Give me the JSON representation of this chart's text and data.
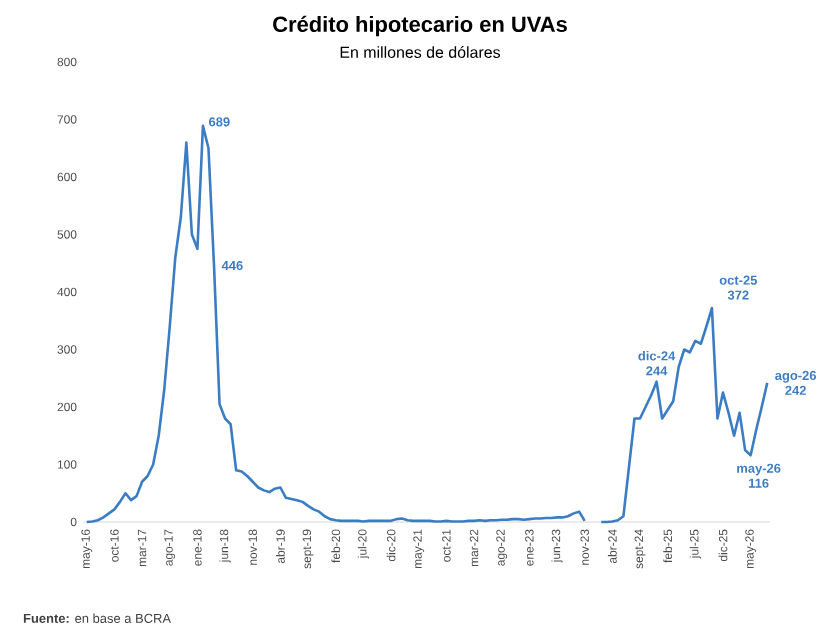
{
  "chart_data": {
    "type": "line",
    "title": "Crédito hipotecario en UVAs",
    "subtitle": "En millones de dólares",
    "categories": [
      "may-16",
      null,
      null,
      null,
      null,
      "oct-16",
      null,
      null,
      null,
      null,
      "mar-17",
      null,
      null,
      null,
      null,
      "ago-17",
      null,
      null,
      null,
      null,
      "ene-18",
      null,
      null,
      null,
      null,
      "jun-18",
      null,
      null,
      null,
      null,
      "nov-18",
      null,
      null,
      null,
      null,
      "abr-19",
      null,
      null,
      null,
      null,
      "sept-19",
      null,
      null,
      null,
      null,
      "feb-20",
      null,
      null,
      null,
      null,
      "jul-20",
      null,
      null,
      null,
      null,
      "dic-20",
      null,
      null,
      null,
      null,
      "may-21",
      null,
      null,
      null,
      null,
      "oct-21",
      null,
      null,
      null,
      null,
      "mar-22",
      null,
      null,
      null,
      null,
      "ago-22",
      null,
      null,
      null,
      null,
      "ene-23",
      null,
      null,
      null,
      null,
      "jun-23",
      null,
      null,
      null,
      null,
      "nov-23",
      null,
      null,
      null,
      null,
      "abr-24",
      null,
      null,
      null,
      null,
      "sept-24",
      null,
      null,
      null,
      null,
      "feb-25",
      null,
      null,
      null,
      null,
      "jul-25",
      null,
      null,
      null,
      null,
      "dic-25",
      null,
      null,
      null,
      null,
      "may-26",
      null,
      null,
      null
    ],
    "values": [
      0,
      1,
      3,
      8,
      15,
      22,
      35,
      50,
      38,
      45,
      70,
      80,
      100,
      150,
      230,
      340,
      460,
      530,
      660,
      500,
      475,
      689,
      650,
      446,
      205,
      180,
      170,
      90,
      88,
      80,
      70,
      60,
      55,
      52,
      58,
      60,
      42,
      40,
      38,
      35,
      28,
      22,
      18,
      10,
      5,
      3,
      2,
      2,
      2,
      2,
      1,
      2,
      2,
      2,
      2,
      2,
      5,
      6,
      3,
      2,
      2,
      2,
      2,
      1,
      1,
      2,
      1,
      1,
      1,
      2,
      2,
      3,
      2,
      3,
      3,
      4,
      4,
      5,
      5,
      4,
      5,
      6,
      6,
      7,
      7,
      8,
      8,
      10,
      15,
      18,
      2,
      null,
      null,
      0,
      0,
      1,
      3,
      10,
      95,
      180,
      180,
      200,
      220,
      244,
      180,
      195,
      210,
      270,
      300,
      295,
      315,
      310,
      340,
      372,
      180,
      225,
      190,
      150,
      190,
      125,
      116,
      160,
      200,
      242
    ],
    "value_labels": [
      null,
      null,
      null,
      null,
      null,
      null,
      null,
      null,
      null,
      null,
      null,
      null,
      null,
      null,
      null,
      null,
      null,
      null,
      null,
      null,
      null,
      "689",
      null,
      "446",
      null,
      null,
      null,
      null,
      null,
      null,
      null,
      null,
      null,
      null,
      null,
      null,
      null,
      null,
      null,
      null,
      null,
      null,
      null,
      null,
      null,
      null,
      null,
      null,
      null,
      null,
      null,
      null,
      null,
      null,
      null,
      null,
      null,
      null,
      null,
      null,
      null,
      null,
      null,
      null,
      null,
      null,
      null,
      null,
      null,
      null,
      null,
      null,
      null,
      null,
      null,
      null,
      null,
      null,
      null,
      null,
      null,
      null,
      null,
      null,
      null,
      null,
      null,
      null,
      null,
      null,
      null,
      null,
      null,
      null,
      null,
      null,
      null,
      null,
      null,
      null,
      null,
      null,
      null,
      "dic-24 244",
      null,
      null,
      null,
      null,
      null,
      null,
      null,
      null,
      null,
      "oct-25 372",
      null,
      null,
      null,
      null,
      null,
      null,
      "may-26 116",
      null,
      null,
      "ago-26 242"
    ],
    "color": "#3b7dc4",
    "ylim": [
      0,
      800
    ],
    "yticks": [
      0,
      100,
      200,
      300,
      400,
      500,
      600,
      700,
      800
    ],
    "annotations": [
      "**Fuente:** en base a BCRA"
    ]
  }
}
